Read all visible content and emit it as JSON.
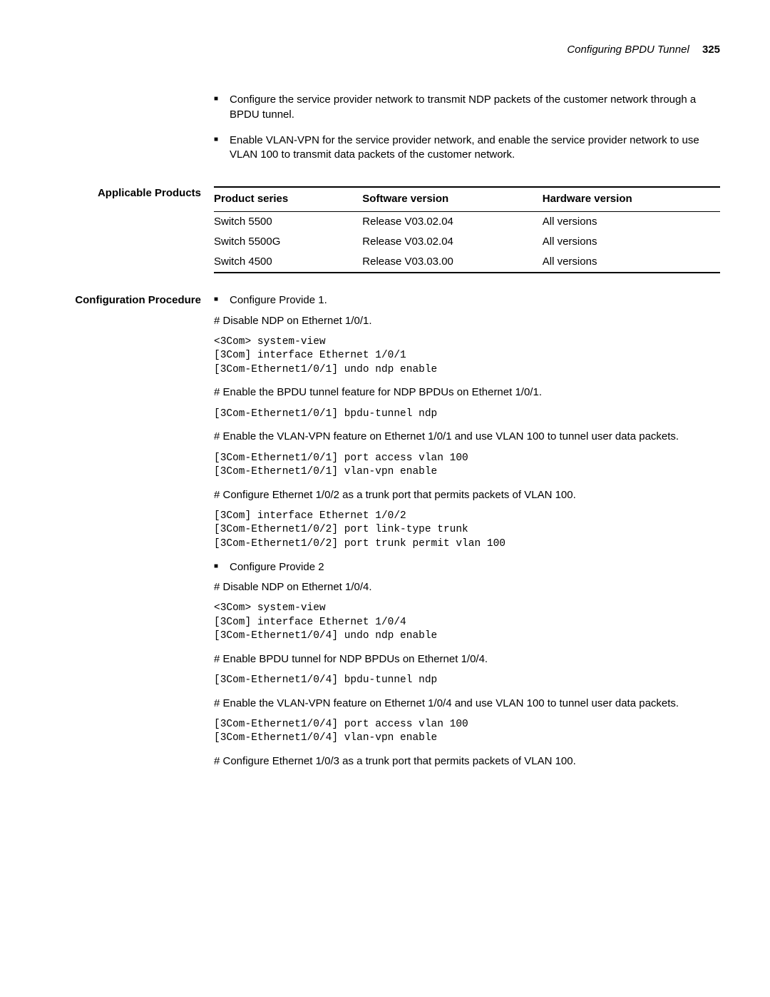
{
  "header": {
    "title": "Configuring BPDU Tunnel",
    "page_number": "325"
  },
  "intro": {
    "bullets": [
      "Configure the service provider network to transmit NDP packets of the customer network through a BPDU tunnel.",
      "Enable VLAN-VPN for the service provider network, and enable the service provider network to use VLAN 100 to transmit data packets of the customer network."
    ]
  },
  "products": {
    "label": "Applicable Products",
    "columns": [
      "Product series",
      "Software version",
      "Hardware version"
    ],
    "rows": [
      [
        "Switch 5500",
        "Release V03.02.04",
        "All versions"
      ],
      [
        "Switch 5500G",
        "Release V03.02.04",
        "All versions"
      ],
      [
        "Switch 4500",
        "Release V03.03.00",
        "All versions"
      ]
    ]
  },
  "procedure": {
    "label": "Configuration Procedure",
    "steps": [
      {
        "type": "bullet",
        "text": "Configure Provide 1."
      },
      {
        "type": "instr",
        "text": "# Disable NDP on Ethernet 1/0/1."
      },
      {
        "type": "code",
        "text": "<3Com> system-view\n[3Com] interface Ethernet 1/0/1\n[3Com-Ethernet1/0/1] undo ndp enable"
      },
      {
        "type": "instr",
        "text": "# Enable the BPDU tunnel feature for NDP BPDUs on Ethernet 1/0/1."
      },
      {
        "type": "code",
        "text": "[3Com-Ethernet1/0/1] bpdu-tunnel ndp"
      },
      {
        "type": "instr",
        "text": "# Enable the VLAN-VPN feature on Ethernet 1/0/1 and use VLAN 100 to tunnel user data packets."
      },
      {
        "type": "code",
        "text": "[3Com-Ethernet1/0/1] port access vlan 100\n[3Com-Ethernet1/0/1] vlan-vpn enable"
      },
      {
        "type": "instr",
        "text": "# Configure Ethernet 1/0/2 as a trunk port that permits packets of VLAN 100."
      },
      {
        "type": "code",
        "text": "[3Com] interface Ethernet 1/0/2\n[3Com-Ethernet1/0/2] port link-type trunk\n[3Com-Ethernet1/0/2] port trunk permit vlan 100"
      },
      {
        "type": "bullet",
        "text": "Configure Provide 2"
      },
      {
        "type": "instr",
        "text": "# Disable NDP on Ethernet 1/0/4."
      },
      {
        "type": "code",
        "text": "<3Com> system-view\n[3Com] interface Ethernet 1/0/4\n[3Com-Ethernet1/0/4] undo ndp enable"
      },
      {
        "type": "instr",
        "text": "# Enable BPDU tunnel for NDP BPDUs on Ethernet 1/0/4."
      },
      {
        "type": "code",
        "text": "[3Com-Ethernet1/0/4] bpdu-tunnel ndp"
      },
      {
        "type": "instr",
        "text": "# Enable the VLAN-VPN feature on Ethernet 1/0/4 and use VLAN 100 to tunnel user data packets."
      },
      {
        "type": "code",
        "text": "[3Com-Ethernet1/0/4] port access vlan 100\n[3Com-Ethernet1/0/4] vlan-vpn enable"
      },
      {
        "type": "instr",
        "text": "# Configure Ethernet 1/0/3 as a trunk port that permits packets of VLAN 100."
      }
    ]
  }
}
